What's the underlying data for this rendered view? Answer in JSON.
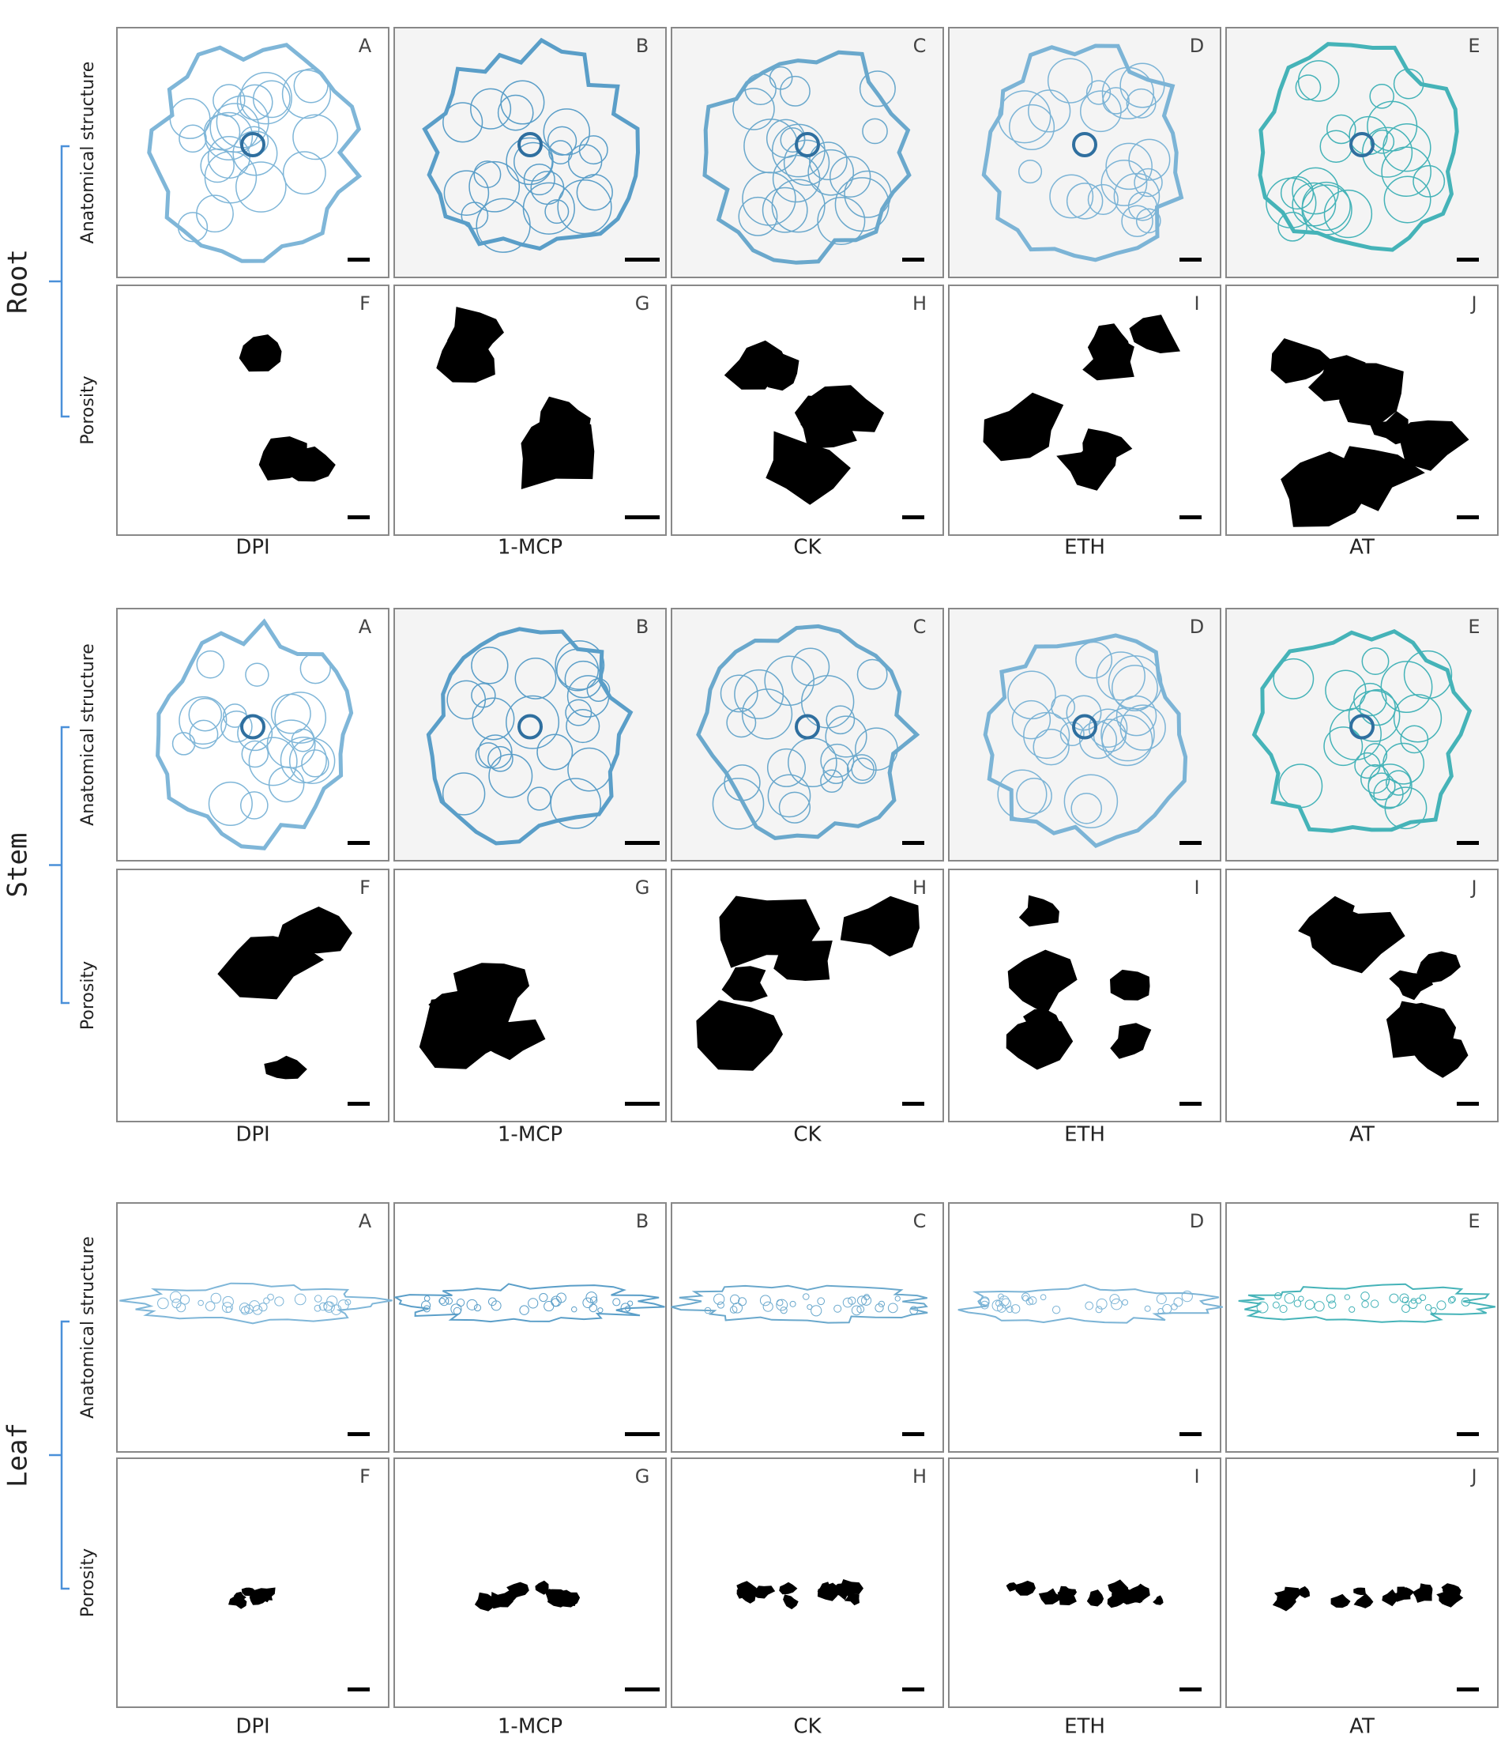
{
  "columns": [
    "DPI",
    "1-MCP",
    "CK",
    "ETH",
    "AT"
  ],
  "sections": [
    {
      "label": "Root",
      "rows": [
        {
          "label": "Anatomical structure",
          "panels": [
            "A",
            "B",
            "C",
            "D",
            "E"
          ]
        },
        {
          "label": "Porosity",
          "panels": [
            "F",
            "G",
            "H",
            "I",
            "J"
          ]
        }
      ]
    },
    {
      "label": "Stem",
      "rows": [
        {
          "label": "Anatomical structure",
          "panels": [
            "A",
            "B",
            "C",
            "D",
            "E"
          ]
        },
        {
          "label": "Porosity",
          "panels": [
            "F",
            "G",
            "H",
            "I",
            "J"
          ]
        }
      ]
    },
    {
      "label": "Leaf",
      "rows": [
        {
          "label": "Anatomical structure",
          "panels": [
            "A",
            "B",
            "C",
            "D",
            "E"
          ]
        },
        {
          "label": "Porosity",
          "panels": [
            "F",
            "G",
            "H",
            "I",
            "J"
          ]
        }
      ]
    }
  ]
}
